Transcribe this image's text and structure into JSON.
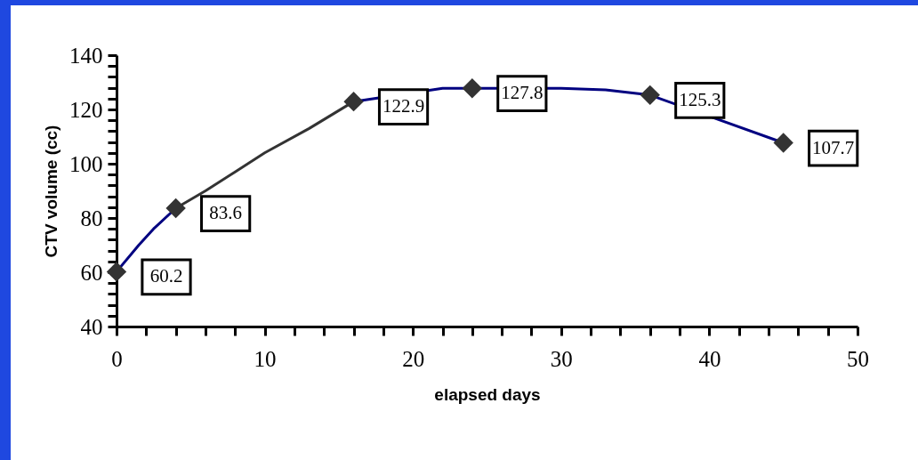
{
  "chart_data": {
    "type": "scatter",
    "xlabel": "elapsed days",
    "ylabel": "CTV volume (cc)",
    "xlim": [
      0,
      50
    ],
    "ylim": [
      40,
      140
    ],
    "xticks": [
      0,
      {
        "value": 2,
        "label": null
      },
      {
        "value": 4,
        "label": null
      },
      {
        "value": 6,
        "label": null
      },
      {
        "value": 8,
        "label": null
      },
      10,
      {
        "value": 12,
        "label": null
      },
      {
        "value": 14,
        "label": null
      },
      {
        "value": 16,
        "label": null
      },
      {
        "value": 18,
        "label": null
      },
      20,
      {
        "value": 22,
        "label": null
      },
      {
        "value": 24,
        "label": null
      },
      {
        "value": 26,
        "label": null
      },
      {
        "value": 28,
        "label": null
      },
      30,
      {
        "value": 32,
        "label": null
      },
      {
        "value": 34,
        "label": null
      },
      {
        "value": 36,
        "label": null
      },
      {
        "value": 38,
        "label": null
      },
      40,
      {
        "value": 42,
        "label": null
      },
      {
        "value": 44,
        "label": null
      },
      {
        "value": 46,
        "label": null
      },
      {
        "value": 48,
        "label": null
      },
      50
    ],
    "yticks": [
      40,
      {
        "value": 44,
        "label": null
      },
      {
        "value": 48,
        "label": null
      },
      {
        "value": 52,
        "label": null
      },
      {
        "value": 56,
        "label": null
      },
      60,
      {
        "value": 64,
        "label": null
      },
      {
        "value": 68,
        "label": null
      },
      {
        "value": 72,
        "label": null
      },
      {
        "value": 76,
        "label": null
      },
      80,
      {
        "value": 84,
        "label": null
      },
      {
        "value": 88,
        "label": null
      },
      {
        "value": 92,
        "label": null
      },
      {
        "value": 96,
        "label": null
      },
      100,
      {
        "value": 104,
        "label": null
      },
      {
        "value": 108,
        "label": null
      },
      {
        "value": 112,
        "label": null
      },
      {
        "value": 116,
        "label": null
      },
      120,
      {
        "value": 124,
        "label": null
      },
      {
        "value": 128,
        "label": null
      },
      {
        "value": 132,
        "label": null
      },
      {
        "value": 136,
        "label": null
      },
      140
    ],
    "grid": false,
    "series": [
      {
        "type": "line",
        "color": "#000080",
        "x": [
          0,
          1.5,
          2.5,
          4
        ],
        "values": [
          60.2,
          70,
          76,
          83.6
        ]
      },
      {
        "type": "line",
        "color": "#333333",
        "x": [
          4,
          6,
          8,
          10,
          13,
          16
        ],
        "values": [
          83.6,
          90,
          97,
          104,
          113,
          122.9
        ]
      },
      {
        "type": "line",
        "color": "#000080",
        "x": [
          16,
          22,
          24,
          30,
          33,
          36,
          45
        ],
        "values": [
          122.9,
          127.8,
          127.8,
          127.8,
          127.2,
          125.3,
          107.7
        ]
      },
      {
        "type": "scatter",
        "color": "#333333",
        "marker": "diamond",
        "x": [
          0,
          4,
          16,
          24,
          36,
          45
        ],
        "values": [
          60.2,
          83.6,
          122.9,
          127.8,
          125.3,
          107.7
        ],
        "value_labels": [
          "60.2",
          "83.6",
          "122.9",
          "127.8",
          "125.3",
          "107.7"
        ]
      }
    ]
  }
}
